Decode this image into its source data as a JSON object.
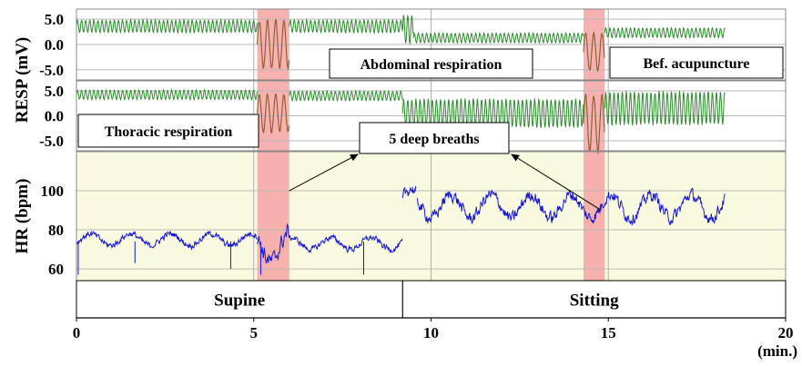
{
  "chart_data": {
    "type": "line",
    "xlabel": "(min.)",
    "xlim": [
      0,
      20
    ],
    "x_ticks": [
      "0",
      "5",
      "10",
      "15",
      "20"
    ],
    "panels": [
      {
        "ylabel_group": "RESP (mV)",
        "ylim": [
          -7,
          7
        ],
        "y_ticks": [
          "5.0",
          "0.0",
          "-5.0"
        ],
        "series": [
          {
            "label": "Abdominal respiration",
            "color": "#2e8b2e",
            "segments": [
              {
                "x": [
                  0.0,
                  5.1
                ],
                "center": 3.6,
                "amplitude": 1.3
              },
              {
                "x": [
                  5.1,
                  6.0
                ],
                "center": 0.0,
                "amplitude": 5.0,
                "highlight_color": "#8b5a2b"
              },
              {
                "x": [
                  6.0,
                  9.2
                ],
                "center": 3.6,
                "amplitude": 1.3
              },
              {
                "x": [
                  9.2,
                  9.5
                ],
                "center": 3.0,
                "amplitude": 3.0
              },
              {
                "x": [
                  9.5,
                  14.3
                ],
                "center": 1.3,
                "amplitude": 1.0
              },
              {
                "x": [
                  14.3,
                  14.9
                ],
                "center": -1.5,
                "amplitude": 4.0,
                "highlight_color": "#8b5a2b"
              },
              {
                "x": [
                  14.9,
                  18.3
                ],
                "center": 2.3,
                "amplitude": 1.0
              }
            ]
          }
        ]
      },
      {
        "ylabel_group": "RESP (mV)",
        "ylim": [
          -7,
          7
        ],
        "y_ticks": [
          "5.0",
          "0.0",
          "-5.0"
        ],
        "series": [
          {
            "label": "Thoracic respiration",
            "color": "#2e8b2e",
            "segments": [
              {
                "x": [
                  0.0,
                  5.1
                ],
                "center": 4.2,
                "amplitude": 1.0
              },
              {
                "x": [
                  5.1,
                  6.0
                ],
                "center": 0.5,
                "amplitude": 4.0,
                "highlight_color": "#8b5a2b"
              },
              {
                "x": [
                  6.0,
                  9.2
                ],
                "center": 4.0,
                "amplitude": 1.0
              },
              {
                "x": [
                  9.2,
                  14.3
                ],
                "center": 0.5,
                "amplitude": 3.0
              },
              {
                "x": [
                  14.3,
                  14.9
                ],
                "center": -1.5,
                "amplitude": 6.0,
                "highlight_color": "#8b5a2b"
              },
              {
                "x": [
                  14.9,
                  18.3
                ],
                "center": 1.5,
                "amplitude": 3.5
              }
            ]
          }
        ]
      },
      {
        "ylabel": "HR (bpm)",
        "ylim": [
          54,
          120
        ],
        "y_ticks": [
          "100",
          "80",
          "60"
        ],
        "series": [
          {
            "name": "HR",
            "color": "#1a1acc",
            "segments": [
              {
                "x": [
                  0.0,
                  5.1
                ],
                "center": 75,
                "amplitude": 3
              },
              {
                "x": [
                  5.1,
                  6.0
                ],
                "center": 72,
                "amplitude": 8
              },
              {
                "x": [
                  6.0,
                  9.2
                ],
                "center": 73,
                "amplitude": 3
              },
              {
                "x": [
                  9.2,
                  9.6
                ],
                "center": 95,
                "amplitude": 6
              },
              {
                "x": [
                  9.6,
                  18.3
                ],
                "center": 92,
                "amplitude": 6
              }
            ],
            "dips": [
              [
                0.05,
                57
              ],
              [
                1.65,
                63
              ],
              [
                4.35,
                60
              ],
              [
                5.2,
                57
              ],
              [
                8.1,
                57
              ]
            ]
          }
        ]
      }
    ],
    "highlight_bands": [
      [
        5.1,
        6.0
      ],
      [
        14.3,
        14.9
      ]
    ],
    "highlight_color": "#f4a3a3",
    "hr_background": "#fafae0",
    "vertical_gridlines_x": [
      5,
      10,
      15
    ],
    "annotations": [
      "Abdominal respiration",
      "Bef. acupuncture",
      "Thoracic respiration",
      "5 deep breaths"
    ],
    "annotation_arrows_to": [
      [
        6.0,
        100
      ],
      [
        14.8,
        90
      ]
    ],
    "positions": [
      {
        "label": "Supine",
        "x": [
          0,
          9.2
        ]
      },
      {
        "label": "Sitting",
        "x": [
          9.2,
          20
        ]
      }
    ]
  }
}
